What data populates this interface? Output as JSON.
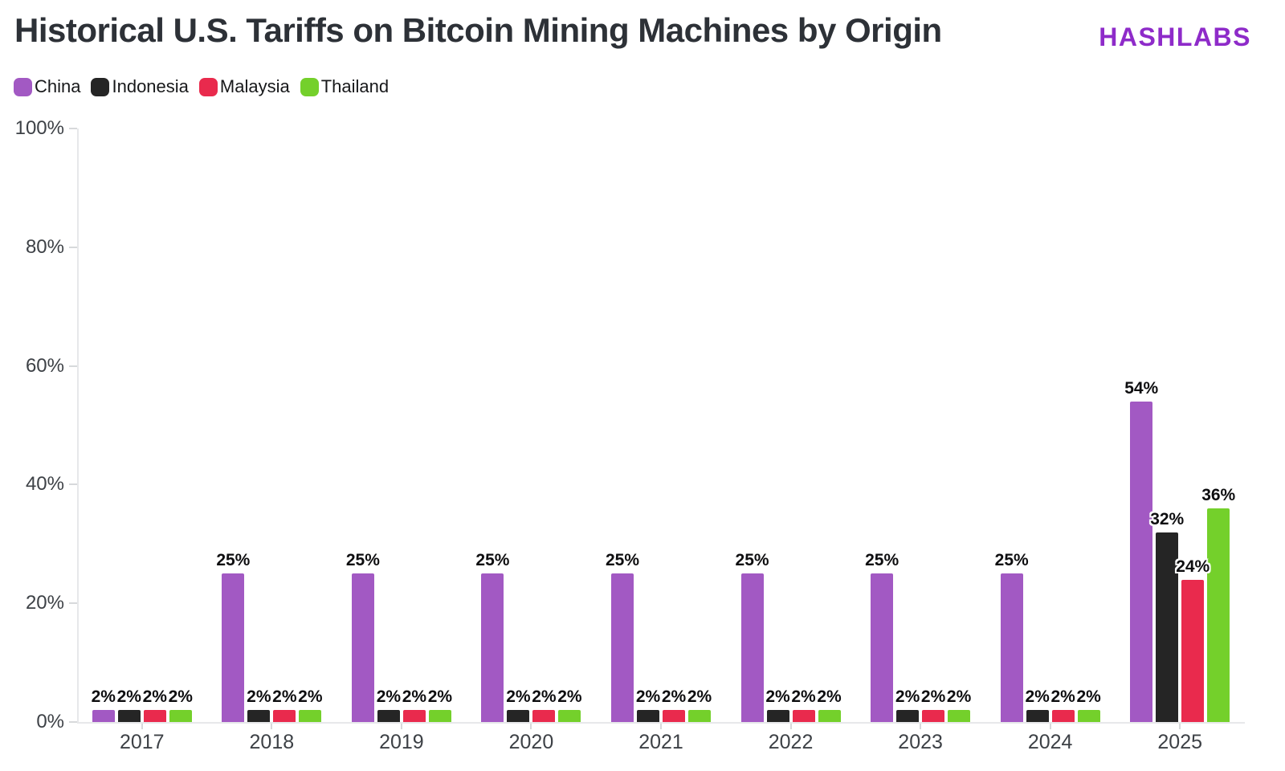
{
  "header": {
    "title": "Historical U.S. Tariffs on Bitcoin Mining Machines by Origin",
    "brand": "HASHLABS",
    "brand_color": "#8e2bc9"
  },
  "chart_data": {
    "type": "bar",
    "title": "Historical U.S. Tariffs on Bitcoin Mining Machines by Origin",
    "categories": [
      "2017",
      "2018",
      "2019",
      "2020",
      "2021",
      "2022",
      "2023",
      "2024",
      "2025"
    ],
    "series": [
      {
        "name": "China",
        "color": "#a259c3",
        "values": [
          2,
          25,
          25,
          25,
          25,
          25,
          25,
          25,
          54
        ]
      },
      {
        "name": "Indonesia",
        "color": "#252525",
        "values": [
          2,
          2,
          2,
          2,
          2,
          2,
          2,
          2,
          32
        ]
      },
      {
        "name": "Malaysia",
        "color": "#e92a4d",
        "values": [
          2,
          2,
          2,
          2,
          2,
          2,
          2,
          2,
          24
        ]
      },
      {
        "name": "Thailand",
        "color": "#74d02b",
        "values": [
          2,
          2,
          2,
          2,
          2,
          2,
          2,
          2,
          36
        ]
      }
    ],
    "bar_label_format": "{value}%",
    "xlabel": "",
    "ylabel": "",
    "ylim": [
      0,
      100
    ],
    "yticks": [
      "0%",
      "20%",
      "40%",
      "60%",
      "80%",
      "100%"
    ],
    "grid": false,
    "legend_position": "top-left"
  }
}
